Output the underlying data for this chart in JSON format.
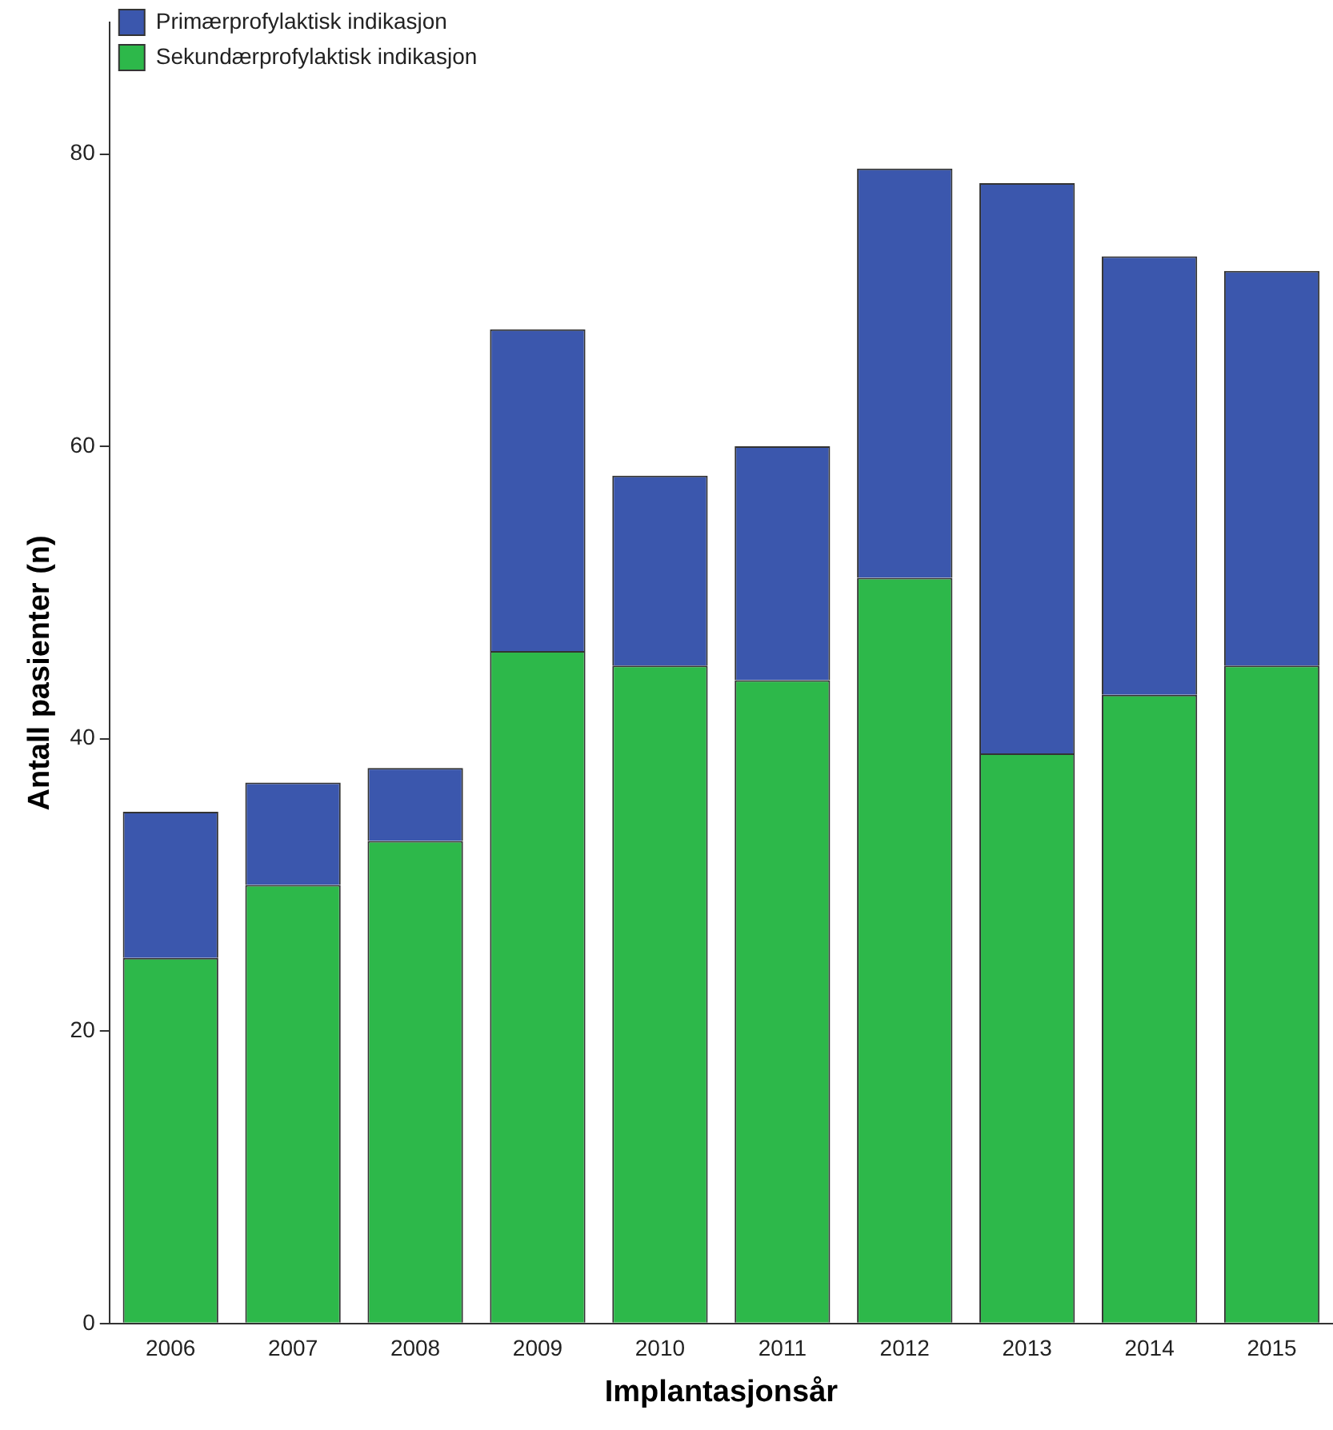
{
  "chart_data": {
    "type": "bar",
    "xlabel": "Implantasjonsår",
    "ylabel": "Antall pasienter (n)",
    "categories": [
      "2006",
      "2007",
      "2008",
      "2009",
      "2010",
      "2011",
      "2012",
      "2013",
      "2014",
      "2015"
    ],
    "series": [
      {
        "name": "Sekundærprofylaktisk indikasjon",
        "color": "#2db84a",
        "values": [
          25,
          30,
          33,
          46,
          45,
          44,
          51,
          39,
          43,
          45
        ]
      },
      {
        "name": "Primærprofylaktisk indikasjon",
        "color": "#3b57ad",
        "values": [
          10,
          7,
          5,
          22,
          13,
          16,
          28,
          39,
          30,
          27
        ]
      }
    ],
    "stacked": true,
    "ylim": [
      0,
      89
    ],
    "yticks": [
      0,
      20,
      40,
      60,
      80
    ],
    "grid": false,
    "legend": "top left"
  }
}
